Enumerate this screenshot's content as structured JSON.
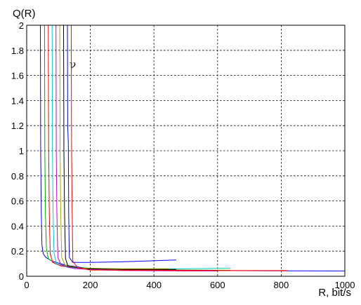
{
  "chart_data": {
    "type": "line",
    "ylabel": "Q(R)",
    "xlabel": "R, bit/s",
    "xlim": [
      0,
      1000
    ],
    "ylim": [
      0,
      2
    ],
    "xticks": [
      0,
      200,
      400,
      600,
      800,
      1000
    ],
    "yticks": [
      0,
      0.2,
      0.4,
      0.6,
      0.8,
      1,
      1.2,
      1.4,
      1.6,
      1.8,
      2
    ],
    "grid": true,
    "annotation": {
      "text": "ν",
      "x": 135,
      "y": 1.66
    },
    "series": [
      {
        "color": "#0000ff",
        "points": [
          [
            43,
            2
          ],
          [
            44,
            1.0
          ],
          [
            46,
            0.5
          ],
          [
            48,
            0.25
          ],
          [
            52,
            0.18
          ],
          [
            60,
            0.15
          ],
          [
            80,
            0.12
          ],
          [
            120,
            0.09
          ],
          [
            200,
            0.06
          ],
          [
            400,
            0.05
          ],
          [
            600,
            0.045
          ],
          [
            800,
            0.043
          ],
          [
            1000,
            0.042
          ]
        ]
      },
      {
        "color": "#00aa00",
        "points": [
          [
            56,
            2
          ],
          [
            57,
            1.0
          ],
          [
            59,
            0.5
          ],
          [
            62,
            0.22
          ],
          [
            68,
            0.14
          ],
          [
            90,
            0.1
          ],
          [
            150,
            0.07
          ],
          [
            300,
            0.055
          ],
          [
            500,
            0.05
          ],
          [
            640,
            0.048
          ]
        ]
      },
      {
        "color": "#ff0000",
        "points": [
          [
            68,
            2
          ],
          [
            69,
            1.0
          ],
          [
            71,
            0.5
          ],
          [
            74,
            0.18
          ],
          [
            82,
            0.11
          ],
          [
            110,
            0.08
          ],
          [
            200,
            0.06
          ],
          [
            400,
            0.05
          ],
          [
            600,
            0.045
          ],
          [
            800,
            0.044
          ],
          [
            820,
            0.044
          ]
        ]
      },
      {
        "color": "#00cccc",
        "points": [
          [
            80,
            2
          ],
          [
            81,
            1.0
          ],
          [
            83,
            0.5
          ],
          [
            86,
            0.18
          ],
          [
            94,
            0.1
          ],
          [
            130,
            0.07
          ],
          [
            250,
            0.058
          ],
          [
            500,
            0.06
          ],
          [
            640,
            0.065
          ]
        ]
      },
      {
        "color": "#cc00cc",
        "points": [
          [
            92,
            2
          ],
          [
            93,
            1.0
          ],
          [
            95,
            0.5
          ],
          [
            98,
            0.15
          ],
          [
            108,
            0.09
          ],
          [
            150,
            0.06
          ],
          [
            300,
            0.045
          ],
          [
            500,
            0.042
          ],
          [
            600,
            0.042
          ]
        ]
      },
      {
        "color": "#aaaa00",
        "points": [
          [
            104,
            2
          ],
          [
            105,
            1.0
          ],
          [
            107,
            0.5
          ],
          [
            110,
            0.15
          ],
          [
            120,
            0.09
          ],
          [
            170,
            0.065
          ],
          [
            300,
            0.06
          ],
          [
            450,
            0.06
          ]
        ]
      },
      {
        "color": "#000000",
        "points": [
          [
            116,
            2
          ],
          [
            117,
            1.0
          ],
          [
            119,
            0.5
          ],
          [
            122,
            0.14
          ],
          [
            130,
            0.08
          ],
          [
            180,
            0.06
          ],
          [
            300,
            0.055
          ],
          [
            470,
            0.055
          ]
        ]
      },
      {
        "color": "#0000ff",
        "points": [
          [
            128,
            2
          ],
          [
            129,
            1.2
          ],
          [
            131,
            1.05
          ],
          [
            132,
            0.5
          ],
          [
            134,
            0.15
          ],
          [
            145,
            0.11
          ],
          [
            200,
            0.11
          ],
          [
            300,
            0.115
          ],
          [
            470,
            0.13
          ]
        ]
      },
      {
        "color": "#ff0000",
        "points": [
          [
            140,
            2
          ],
          [
            141,
            1.0
          ],
          [
            143,
            0.5
          ],
          [
            145,
            0.12
          ],
          [
            160,
            0.07
          ],
          [
            200,
            0.05
          ],
          [
            500,
            0.045
          ],
          [
            820,
            0.045
          ]
        ]
      }
    ]
  }
}
